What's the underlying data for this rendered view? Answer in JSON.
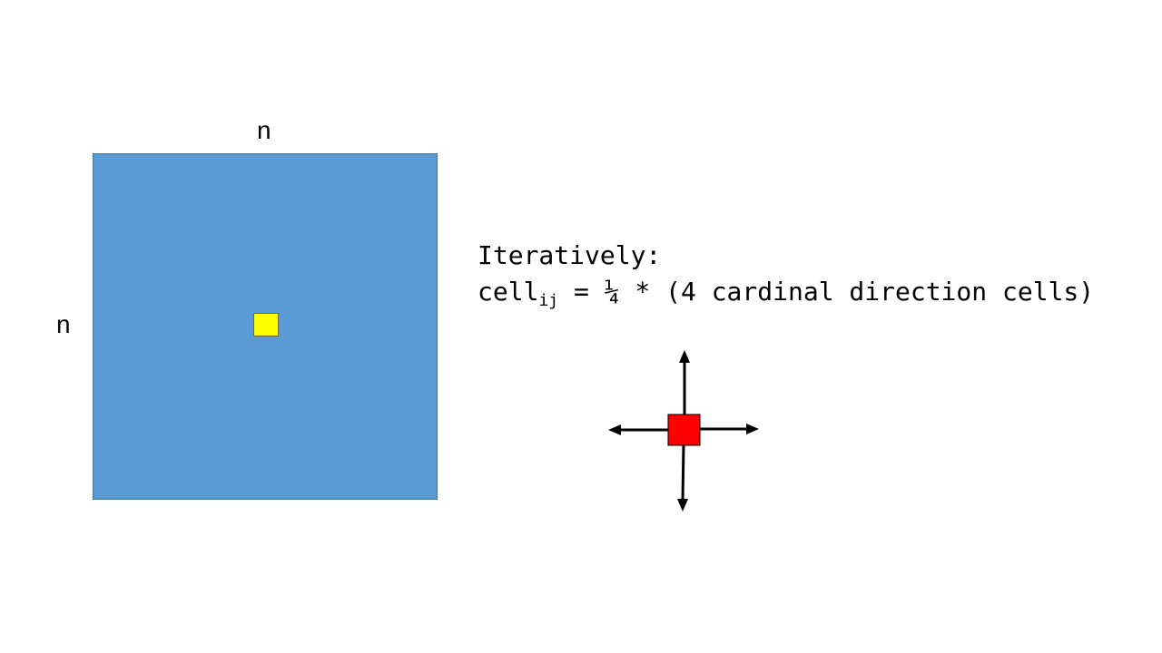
{
  "diagram": {
    "top_label": "n",
    "left_label": "n",
    "heading": "Iteratively:",
    "formula": {
      "lhs_prefix": "cell",
      "lhs_subscript": "ij",
      "rhs": " = ¼ * (4 cardinal direction cells)"
    },
    "colors": {
      "grid": "#5b9bd5",
      "center_cell": "#ffff00",
      "stencil_cell": "#ff0000",
      "arrows": "#000000"
    },
    "icons": {
      "stencil": "four-direction-arrows-icon"
    }
  }
}
